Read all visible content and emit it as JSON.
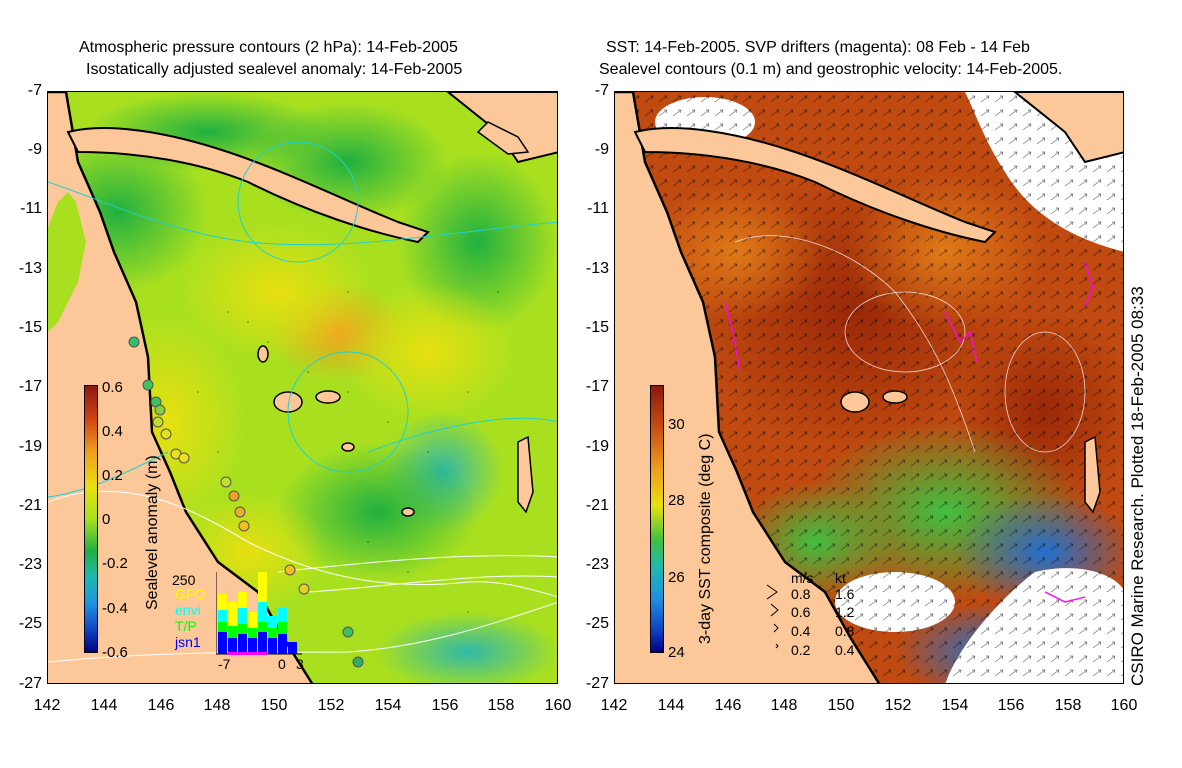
{
  "left_panel": {
    "title_line1": "Atmospheric pressure contours (2 hPa): 14-Feb-2005",
    "title_line2": "Isostatically adjusted sealevel anomaly: 14-Feb-2005",
    "colorbar_label": "Sealevel anomaly (m)",
    "colorbar_ticks": [
      "0.6",
      "0.4",
      "0.2",
      "0",
      "-0.2",
      "-0.4",
      "-0.6"
    ],
    "histogram": {
      "ymax_label": "250",
      "legend": [
        {
          "label": "GFO",
          "color": "#ffff00"
        },
        {
          "label": "envi",
          "color": "#00ffff"
        },
        {
          "label": "T/P",
          "color": "#00ff00"
        },
        {
          "label": "jsn1",
          "color": "#0000ff"
        }
      ],
      "x_ticks": [
        "-7",
        "0",
        "3"
      ]
    }
  },
  "right_panel": {
    "title_line1": "SST: 14-Feb-2005. SVP drifters (magenta): 08 Feb - 14 Feb",
    "title_line2": "Sealevel contours (0.1 m) and geostrophic velocity: 14-Feb-2005.",
    "colorbar_label": "3-day SST composite (deg C)",
    "colorbar_ticks": [
      "30",
      "28",
      "26",
      "24"
    ],
    "velocity_legend": {
      "header_ms": "m/s",
      "header_kt": "kt",
      "rows": [
        {
          "ms": "0.8",
          "kt": "1.6"
        },
        {
          "ms": "0.6",
          "kt": "1.2"
        },
        {
          "ms": "0.4",
          "kt": "0.8"
        },
        {
          "ms": "0.2",
          "kt": "0.4"
        }
      ]
    },
    "credit": "CSIRO Marine Research. Plotted 18-Feb-2005 08:33"
  },
  "axes": {
    "y_ticks": [
      "-7",
      "-9",
      "-11",
      "-13",
      "-15",
      "-17",
      "-19",
      "-21",
      "-23",
      "-25",
      "-27"
    ],
    "x_ticks": [
      "142",
      "144",
      "146",
      "148",
      "150",
      "152",
      "154",
      "156",
      "158",
      "160"
    ]
  },
  "colors": {
    "land": "#fcc89a",
    "sla_mid": "#a8e020",
    "sst_warm": "#c04a10",
    "coast": "#000000"
  }
}
